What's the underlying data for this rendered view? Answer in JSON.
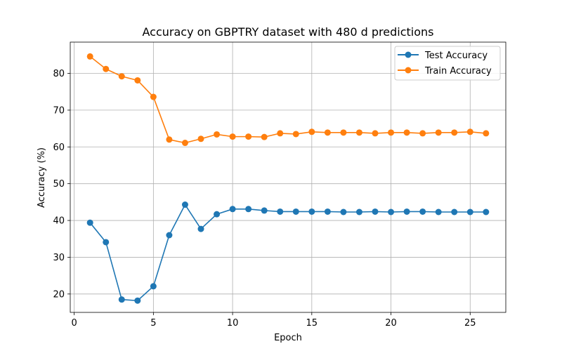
{
  "chart_data": {
    "type": "line",
    "title": "Accuracy on GBPTRY dataset with 480 d predictions",
    "xlabel": "Epoch",
    "ylabel": "Accuracy (%)",
    "xlim": [
      -0.25,
      27.25
    ],
    "ylim": [
      15.0,
      88.5
    ],
    "xticks": [
      0,
      5,
      10,
      15,
      20,
      25
    ],
    "yticks": [
      20,
      30,
      40,
      50,
      60,
      70,
      80
    ],
    "grid": true,
    "legend_position": "top-right",
    "x": [
      1,
      2,
      3,
      4,
      5,
      6,
      7,
      8,
      9,
      10,
      11,
      12,
      13,
      14,
      15,
      16,
      17,
      18,
      19,
      20,
      21,
      22,
      23,
      24,
      25,
      26
    ],
    "series": [
      {
        "name": "Test Accuracy",
        "color": "#1f77b4",
        "values": [
          39.4,
          34.1,
          18.5,
          18.2,
          22.1,
          36.0,
          44.3,
          37.7,
          41.7,
          43.1,
          43.1,
          42.7,
          42.4,
          42.4,
          42.4,
          42.4,
          42.3,
          42.3,
          42.4,
          42.3,
          42.4,
          42.4,
          42.3,
          42.3,
          42.3,
          42.3
        ]
      },
      {
        "name": "Train Accuracy",
        "color": "#ff7f0e",
        "values": [
          84.6,
          81.2,
          79.2,
          78.1,
          73.6,
          62.0,
          61.1,
          62.2,
          63.4,
          62.8,
          62.8,
          62.7,
          63.7,
          63.5,
          64.1,
          63.9,
          63.9,
          63.9,
          63.7,
          63.9,
          63.9,
          63.7,
          63.9,
          63.9,
          64.1,
          63.7
        ]
      }
    ]
  }
}
